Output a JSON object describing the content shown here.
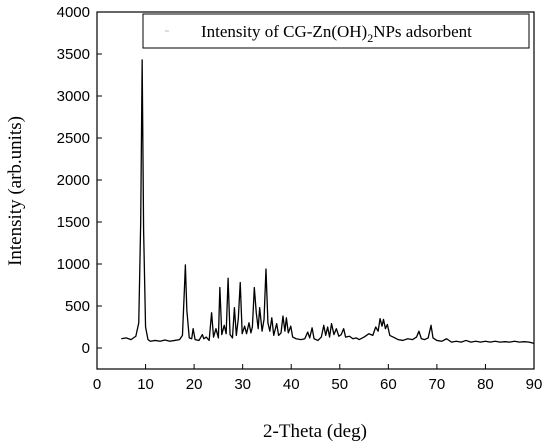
{
  "chart_data": {
    "type": "line",
    "xlabel": "2-Theta (deg)",
    "ylabel": "Intensity (arb.units)",
    "xlim": [
      0,
      90
    ],
    "ylim": [
      -250,
      4000
    ],
    "x_ticks": [
      0,
      10,
      20,
      30,
      40,
      50,
      60,
      70,
      80,
      90
    ],
    "y_ticks": [
      0,
      500,
      1000,
      1500,
      2000,
      2500,
      3000,
      3500,
      4000
    ],
    "grid": false,
    "legend": {
      "position": "top-right",
      "prefix": "Intensity of CG-Zn(OH)",
      "subscript": "2",
      "suffix": "NPs adsorbent"
    },
    "series": [
      {
        "name": "Intensity of CG-Zn(OH)2NPs adsorbent",
        "color": "#000000",
        "points": [
          [
            5,
            110
          ],
          [
            6,
            120
          ],
          [
            7,
            100
          ],
          [
            8,
            140
          ],
          [
            8.6,
            300
          ],
          [
            9.0,
            1500
          ],
          [
            9.3,
            3430
          ],
          [
            9.6,
            1400
          ],
          [
            10.0,
            250
          ],
          [
            10.5,
            100
          ],
          [
            11,
            80
          ],
          [
            12,
            90
          ],
          [
            13,
            80
          ],
          [
            14,
            95
          ],
          [
            15,
            80
          ],
          [
            16,
            90
          ],
          [
            17,
            100
          ],
          [
            17.6,
            150
          ],
          [
            18.0,
            700
          ],
          [
            18.2,
            990
          ],
          [
            18.5,
            450
          ],
          [
            19,
            120
          ],
          [
            19.5,
            110
          ],
          [
            19.8,
            230
          ],
          [
            20.2,
            100
          ],
          [
            21,
            90
          ],
          [
            21.7,
            160
          ],
          [
            22.0,
            110
          ],
          [
            22.5,
            130
          ],
          [
            23.1,
            90
          ],
          [
            23.6,
            420
          ],
          [
            24.0,
            130
          ],
          [
            24.5,
            230
          ],
          [
            25.0,
            120
          ],
          [
            25.3,
            720
          ],
          [
            25.7,
            160
          ],
          [
            26.2,
            270
          ],
          [
            26.6,
            170
          ],
          [
            27.0,
            830
          ],
          [
            27.4,
            160
          ],
          [
            27.9,
            120
          ],
          [
            28.3,
            480
          ],
          [
            28.7,
            150
          ],
          [
            29.1,
            350
          ],
          [
            29.5,
            780
          ],
          [
            29.9,
            170
          ],
          [
            30.4,
            260
          ],
          [
            30.8,
            170
          ],
          [
            31.3,
            300
          ],
          [
            31.7,
            180
          ],
          [
            32.0,
            250
          ],
          [
            32.4,
            720
          ],
          [
            32.8,
            420
          ],
          [
            33.2,
            230
          ],
          [
            33.5,
            480
          ],
          [
            34.0,
            200
          ],
          [
            34.4,
            340
          ],
          [
            34.8,
            940
          ],
          [
            35.2,
            300
          ],
          [
            35.6,
            200
          ],
          [
            36.0,
            360
          ],
          [
            36.4,
            150
          ],
          [
            37.0,
            290
          ],
          [
            37.4,
            150
          ],
          [
            37.9,
            180
          ],
          [
            38.3,
            380
          ],
          [
            38.7,
            200
          ],
          [
            39.0,
            360
          ],
          [
            39.4,
            180
          ],
          [
            39.9,
            260
          ],
          [
            40.3,
            130
          ],
          [
            41.0,
            110
          ],
          [
            42.0,
            100
          ],
          [
            42.8,
            110
          ],
          [
            43.4,
            190
          ],
          [
            43.8,
            120
          ],
          [
            44.3,
            240
          ],
          [
            44.7,
            110
          ],
          [
            45.5,
            90
          ],
          [
            46.2,
            130
          ],
          [
            46.7,
            270
          ],
          [
            47.1,
            150
          ],
          [
            47.5,
            250
          ],
          [
            47.9,
            130
          ],
          [
            48.3,
            290
          ],
          [
            48.8,
            160
          ],
          [
            49.3,
            230
          ],
          [
            49.8,
            140
          ],
          [
            50.3,
            160
          ],
          [
            50.8,
            230
          ],
          [
            51.2,
            130
          ],
          [
            52.0,
            140
          ],
          [
            52.7,
            110
          ],
          [
            53.4,
            120
          ],
          [
            54.0,
            100
          ],
          [
            55.0,
            130
          ],
          [
            56.0,
            170
          ],
          [
            56.8,
            150
          ],
          [
            57.4,
            250
          ],
          [
            57.9,
            200
          ],
          [
            58.3,
            350
          ],
          [
            58.7,
            260
          ],
          [
            59.0,
            340
          ],
          [
            59.4,
            230
          ],
          [
            59.8,
            280
          ],
          [
            60.3,
            150
          ],
          [
            61.0,
            130
          ],
          [
            62.0,
            100
          ],
          [
            63.0,
            90
          ],
          [
            64.0,
            110
          ],
          [
            65.0,
            100
          ],
          [
            65.8,
            130
          ],
          [
            66.3,
            200
          ],
          [
            66.8,
            110
          ],
          [
            67.5,
            100
          ],
          [
            68.2,
            120
          ],
          [
            68.8,
            270
          ],
          [
            69.2,
            120
          ],
          [
            70.0,
            90
          ],
          [
            71.0,
            80
          ],
          [
            72.0,
            110
          ],
          [
            73.0,
            70
          ],
          [
            74.0,
            80
          ],
          [
            75.0,
            70
          ],
          [
            76.0,
            90
          ],
          [
            77.0,
            70
          ],
          [
            78.0,
            80
          ],
          [
            79.0,
            70
          ],
          [
            80.0,
            80
          ],
          [
            81.0,
            70
          ],
          [
            82.0,
            80
          ],
          [
            83.0,
            70
          ],
          [
            84.0,
            75
          ],
          [
            85.0,
            70
          ],
          [
            86.0,
            80
          ],
          [
            87.0,
            70
          ],
          [
            88.0,
            75
          ],
          [
            89.0,
            70
          ],
          [
            90.0,
            55
          ]
        ]
      }
    ]
  }
}
